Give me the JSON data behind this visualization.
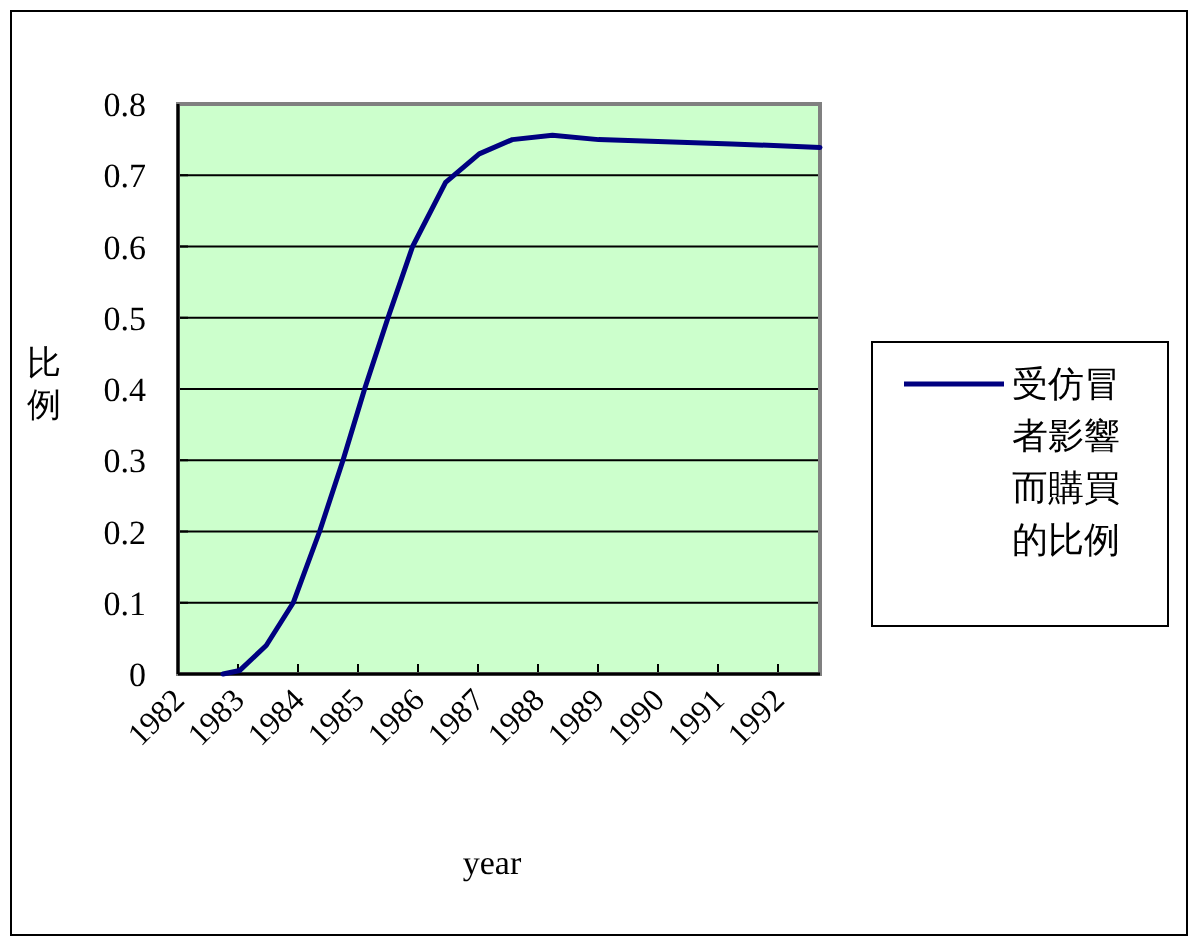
{
  "chart_data": {
    "type": "line",
    "xlabel": "year",
    "ylabel": "比例",
    "x": [
      1982.75,
      1983.03,
      1983.47,
      1983.92,
      1984.36,
      1984.75,
      1985.11,
      1985.5,
      1985.91,
      1986.46,
      1987.02,
      1987.57,
      1988.24,
      1989.01,
      1990.12,
      1991.23,
      1992.7
    ],
    "series": [
      {
        "name": "受仿冒者影響而購買的比例",
        "color": "#000080",
        "values": [
          0,
          0.005,
          0.04,
          0.1,
          0.2,
          0.3,
          0.4,
          0.5,
          0.6,
          0.69,
          0.73,
          0.75,
          0.756,
          0.75,
          0.747,
          0.744,
          0.739
        ]
      }
    ],
    "xlim": [
      1982,
      1992.7
    ],
    "xticks": [
      1982,
      1983,
      1984,
      1985,
      1986,
      1987,
      1988,
      1989,
      1990,
      1991,
      1992
    ],
    "ylim": [
      0,
      0.8
    ],
    "yticks": [
      0,
      0.1,
      0.2,
      0.3,
      0.4,
      0.5,
      0.6,
      0.7,
      0.8
    ],
    "grid": "y",
    "legend": "right",
    "marker": "none",
    "line_style": "solid"
  }
}
